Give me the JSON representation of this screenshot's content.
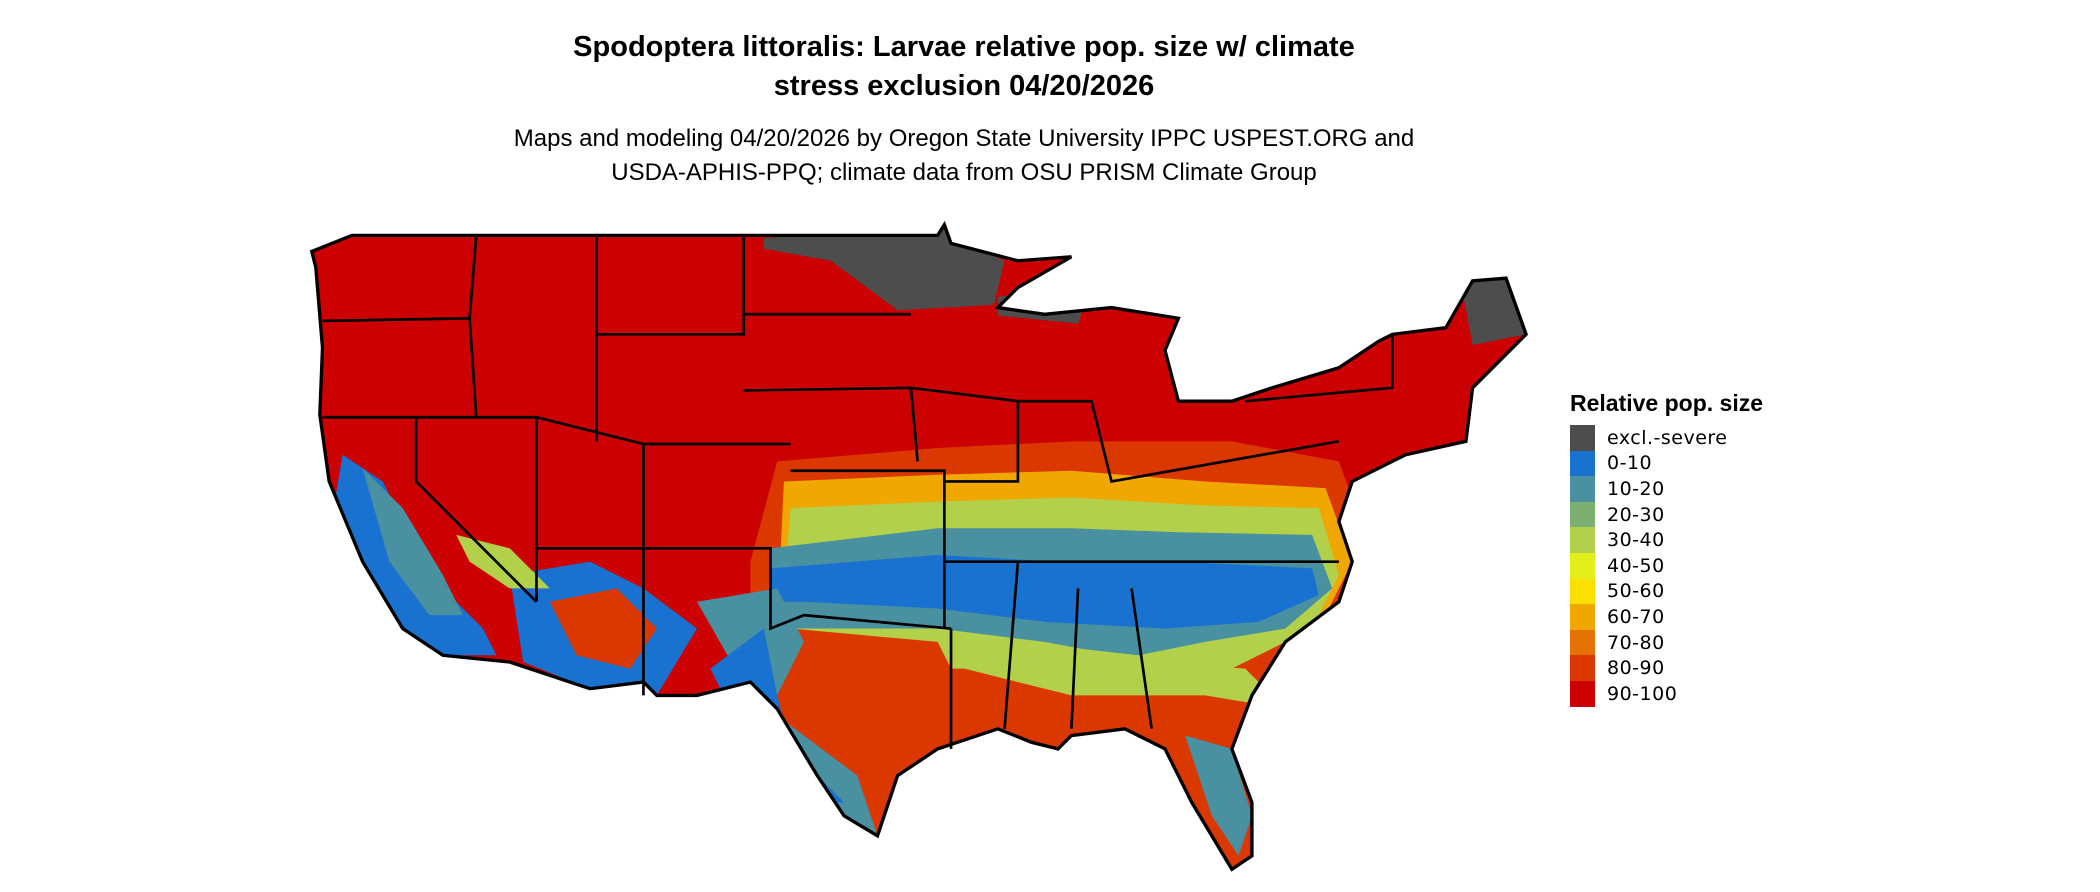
{
  "title_lines": [
    "Spodoptera littoralis: Larvae relative pop. size w/ climate",
    "stress exclusion 04/20/2026"
  ],
  "subtitle_lines": [
    "Maps and modeling 04/20/2026 by Oregon State University IPPC USPEST.ORG and",
    "USDA-APHIS-PPQ; climate data from OSU PRISM Climate Group"
  ],
  "legend": {
    "title": "Relative pop. size",
    "items": [
      {
        "label": "excl.-severe",
        "color": "#4d4d4d"
      },
      {
        "label": "0-10",
        "color": "#1a72d0"
      },
      {
        "label": "10-20",
        "color": "#4990a0"
      },
      {
        "label": "20-30",
        "color": "#7daf73"
      },
      {
        "label": "30-40",
        "color": "#b2d04a"
      },
      {
        "label": "40-50",
        "color": "#e3ef1a"
      },
      {
        "label": "50-60",
        "color": "#f9e000"
      },
      {
        "label": "60-70",
        "color": "#f0a800"
      },
      {
        "label": "70-80",
        "color": "#e57200"
      },
      {
        "label": "80-90",
        "color": "#db3800"
      },
      {
        "label": "90-100",
        "color": "#cc0000"
      }
    ]
  },
  "map": {
    "region": "Contiguous United States",
    "dominant_class": "90-100"
  }
}
